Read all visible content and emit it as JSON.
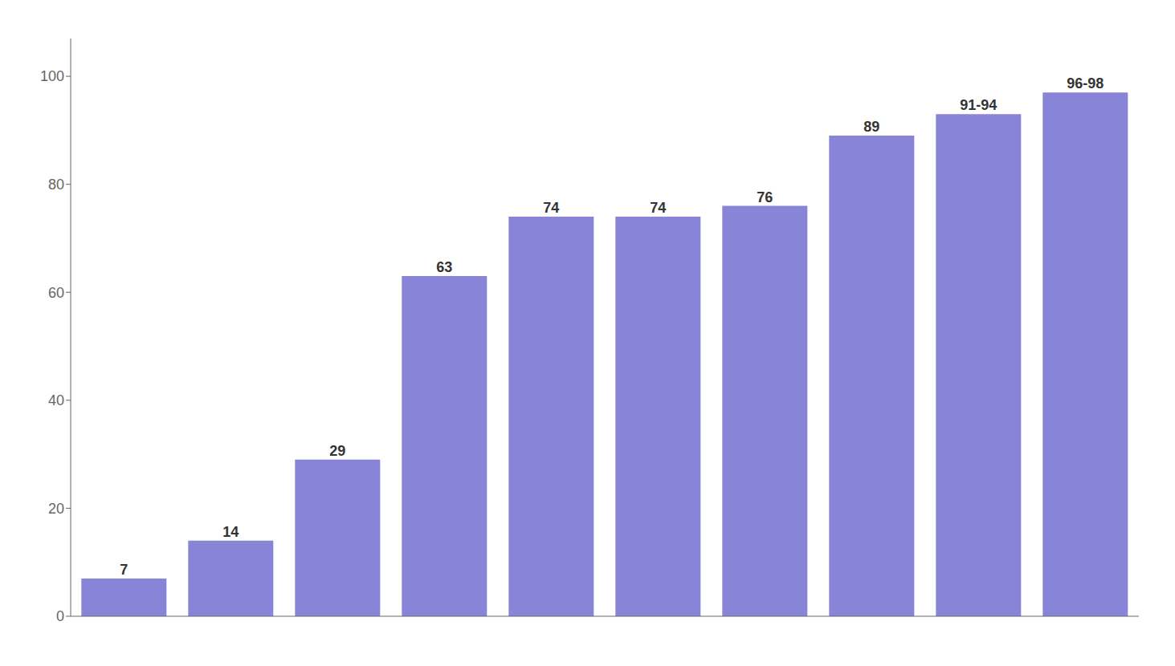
{
  "chart_data": {
    "type": "bar",
    "categories": [
      null,
      null,
      null,
      null,
      null,
      null,
      null,
      null,
      null,
      null
    ],
    "values": [
      7,
      14,
      29,
      63,
      74,
      74,
      76,
      89,
      93,
      97
    ],
    "value_labels": [
      "7",
      "14",
      "29",
      "63",
      "74",
      "74",
      "76",
      "89",
      "91-94",
      "96-98"
    ],
    "color": "#8884d8",
    "ylim": [
      0,
      107
    ],
    "yticks": [
      0,
      20,
      40,
      60,
      80,
      100
    ],
    "grid": false,
    "data_labels": true,
    "tick_labels": "y"
  }
}
